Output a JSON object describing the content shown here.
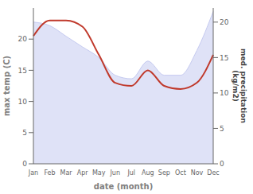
{
  "chart_data": {
    "type": "line",
    "categories": [
      "Jan",
      "Feb",
      "Mar",
      "Apr",
      "May",
      "Jun",
      "Jul",
      "Aug",
      "Sep",
      "Oct",
      "Nov",
      "Dec"
    ],
    "series": [
      {
        "type": "area",
        "axis": "y2",
        "color": "#c5caf0",
        "values": [
          20.0,
          19.5,
          18.0,
          16.5,
          15.0,
          12.5,
          12.0,
          14.5,
          12.5,
          12.5,
          16.0,
          21.5
        ]
      },
      {
        "type": "line",
        "color": "#c0392b",
        "values": [
          20.5,
          23.0,
          23.0,
          22.0,
          17.5,
          13.0,
          12.5,
          15.0,
          12.5,
          12.0,
          13.0,
          17.5
        ]
      }
    ],
    "xlabel": "date (month)",
    "ylabel": "max temp (C)",
    "y2label": "med. precipitation\n(kg/m2)",
    "ylim": [
      0,
      25
    ],
    "yticks": [
      0,
      5,
      10,
      15,
      20
    ],
    "y2lim": [
      0,
      22
    ],
    "y2ticks": [
      0,
      5,
      10,
      15,
      20
    ],
    "grid": false
  }
}
